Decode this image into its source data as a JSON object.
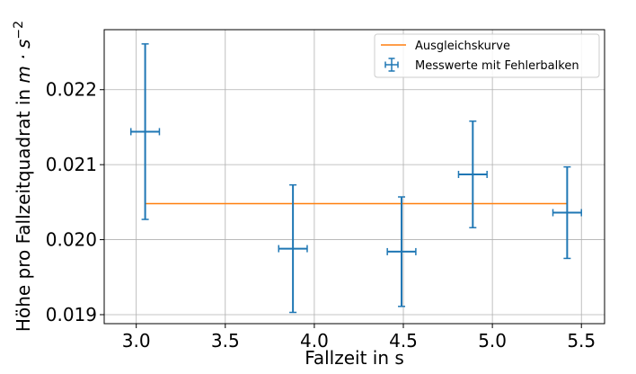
{
  "chart_data": {
    "type": "scatter",
    "title": "",
    "xlabel": "Fallzeit in s",
    "ylabel_prefix": "Höhe pro Fallzeitquadrat in ",
    "ylabel_unit": "m · s",
    "ylabel_exponent": "−2",
    "xlim": [
      2.82,
      5.63
    ],
    "ylim": [
      0.01888,
      0.0228
    ],
    "xticks": [
      3.0,
      3.5,
      4.0,
      4.5,
      5.0,
      5.5
    ],
    "xtick_labels": [
      "3.0",
      "3.5",
      "4.0",
      "4.5",
      "5.0",
      "5.5"
    ],
    "yticks": [
      0.019,
      0.02,
      0.021,
      0.022
    ],
    "ytick_labels": [
      "0.019",
      "0.020",
      "0.021",
      "0.022"
    ],
    "grid": true,
    "legend_position": "top-right",
    "fit_line": {
      "name": "Ausgleichskurve",
      "color": "#ff7f0e",
      "x": [
        3.05,
        5.42
      ],
      "y": [
        0.02048,
        0.02048
      ]
    },
    "series": [
      {
        "name": "Messwerte mit Fehlerbalken",
        "color": "#1f77b4",
        "x": [
          3.05,
          3.88,
          4.49,
          4.89,
          5.42
        ],
        "y": [
          0.02144,
          0.01988,
          0.01984,
          0.02087,
          0.02036
        ],
        "xerr": [
          0.08,
          0.08,
          0.08,
          0.08,
          0.08
        ],
        "yerr": [
          0.00117,
          0.00085,
          0.00073,
          0.00071,
          0.00061
        ]
      }
    ]
  }
}
